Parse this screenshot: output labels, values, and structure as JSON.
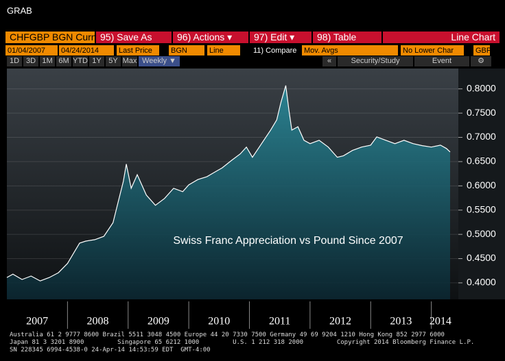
{
  "header": {
    "title": "GRAB"
  },
  "toolbar": {
    "row1": [
      "CHFGBP BGN Curn",
      "95) Save As",
      "96) Actions ▾",
      "97) Edit ▾",
      "98) Table",
      "Line Chart"
    ],
    "row2": [
      "01/04/2007",
      "04/24/2014",
      "Last Price",
      "BGN",
      "Line",
      "11) Compare",
      "Mov. Avgs",
      "No Lower Char",
      "GBP"
    ],
    "row3": [
      "1D",
      "3D",
      "1M",
      "6M",
      "YTD",
      "1Y",
      "5Y",
      "Max",
      "Weekly ▼",
      "«",
      "Security/Study",
      "Event",
      "⚙"
    ]
  },
  "chart_data": {
    "type": "line",
    "annotation": "Swiss Franc Appreciation vs Pound Since 2007",
    "color": "#ffffff",
    "fill": "#2a8a9a",
    "x": [
      2007.0,
      2007.1,
      2007.25,
      2007.4,
      2007.55,
      2007.7,
      2007.85,
      2008.0,
      2008.1,
      2008.2,
      2008.3,
      2008.45,
      2008.6,
      2008.75,
      2008.85,
      2008.92,
      2008.97,
      2009.05,
      2009.15,
      2009.3,
      2009.45,
      2009.6,
      2009.75,
      2009.9,
      2010.0,
      2010.15,
      2010.3,
      2010.45,
      2010.55,
      2010.7,
      2010.85,
      2010.95,
      2011.05,
      2011.2,
      2011.35,
      2011.45,
      2011.52,
      2011.6,
      2011.65,
      2011.7,
      2011.8,
      2011.9,
      2012.0,
      2012.15,
      2012.3,
      2012.45,
      2012.55,
      2012.7,
      2012.85,
      2013.0,
      2013.1,
      2013.25,
      2013.4,
      2013.55,
      2013.7,
      2013.85,
      2014.0,
      2014.15,
      2014.25,
      2014.31
    ],
    "values": [
      0.411,
      0.418,
      0.407,
      0.414,
      0.404,
      0.411,
      0.421,
      0.44,
      0.461,
      0.482,
      0.486,
      0.489,
      0.496,
      0.524,
      0.574,
      0.609,
      0.645,
      0.595,
      0.623,
      0.581,
      0.56,
      0.574,
      0.595,
      0.588,
      0.602,
      0.613,
      0.619,
      0.63,
      0.637,
      0.652,
      0.666,
      0.68,
      0.659,
      0.687,
      0.715,
      0.736,
      0.772,
      0.807,
      0.758,
      0.715,
      0.722,
      0.694,
      0.687,
      0.694,
      0.68,
      0.659,
      0.662,
      0.673,
      0.68,
      0.684,
      0.701,
      0.694,
      0.687,
      0.694,
      0.687,
      0.683,
      0.68,
      0.684,
      0.677,
      0.67
    ],
    "xlim": [
      2007.0,
      2014.31
    ],
    "xticks": [
      {
        "value": 2007.5,
        "label": "2007"
      },
      {
        "value": 2008.5,
        "label": "2008"
      },
      {
        "value": 2009.5,
        "label": "2009"
      },
      {
        "value": 2010.5,
        "label": "2010"
      },
      {
        "value": 2011.5,
        "label": "2011"
      },
      {
        "value": 2012.5,
        "label": "2012"
      },
      {
        "value": 2013.5,
        "label": "2013"
      },
      {
        "value": 2014.15,
        "label": "2014"
      }
    ],
    "ylim": [
      0.366,
      0.842
    ],
    "yticks": [
      {
        "value": 0.4,
        "label": "0.4000"
      },
      {
        "value": 0.45,
        "label": "0.4500"
      },
      {
        "value": 0.5,
        "label": "0.5000"
      },
      {
        "value": 0.55,
        "label": "0.5500"
      },
      {
        "value": 0.6,
        "label": "0.6000"
      },
      {
        "value": 0.65,
        "label": "0.6500"
      },
      {
        "value": 0.7,
        "label": "0.7000"
      },
      {
        "value": 0.75,
        "label": "0.7500"
      },
      {
        "value": 0.8,
        "label": "0.8000"
      }
    ],
    "grid": true
  },
  "footer": [
    "Australia 61 2 9777 8600 Brazil 5511 3048 4500 Europe 44 20 7330 7500 Germany 49 69 9204 1210 Hong Kong 852 2977 6000",
    "Japan 81 3 3201 8900         Singapore 65 6212 1000         U.S. 1 212 318 2000         Copyright 2014 Bloomberg Finance L.P.",
    "SN 228345 6994-4538-0 24-Apr-14 14:53:59 EDT  GMT-4:00"
  ]
}
